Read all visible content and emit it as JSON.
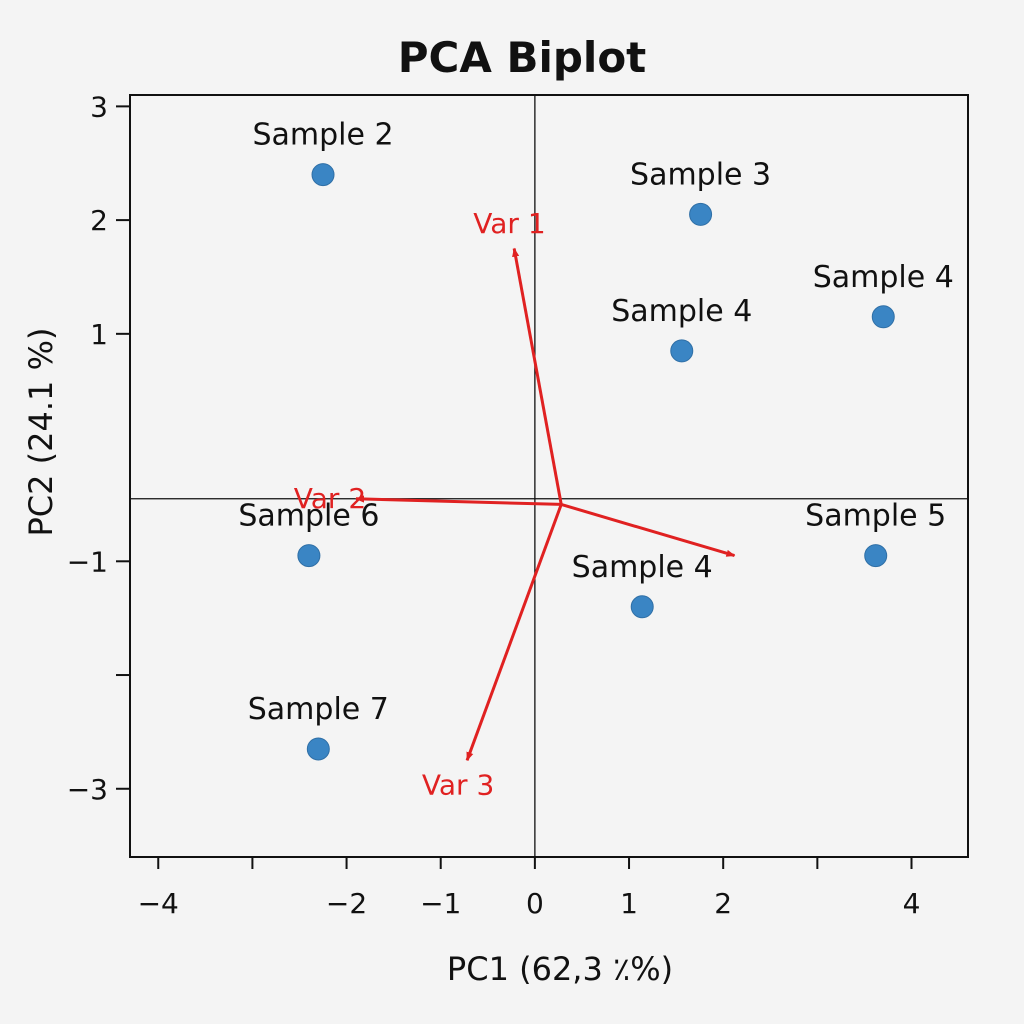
{
  "chart_data": {
    "type": "scatter",
    "title": "PCA Biplot",
    "xlabel": "PC1 (62,3 ٪%)",
    "ylabel": "PC2 (24.1 %)",
    "xlim": [
      -4.3,
      4.6
    ],
    "ylim": [
      -3.6,
      3.1
    ],
    "x_ticks": [
      {
        "value": -4,
        "label": "−4"
      },
      {
        "value": -3,
        "label": ""
      },
      {
        "value": -2,
        "label": "−2"
      },
      {
        "value": -1,
        "label": "−1"
      },
      {
        "value": 0,
        "label": "0"
      },
      {
        "value": 1,
        "label": "1"
      },
      {
        "value": 2,
        "label": "2"
      },
      {
        "value": 3,
        "label": ""
      },
      {
        "value": 4,
        "label": "4"
      }
    ],
    "y_ticks": [
      {
        "value": 3,
        "label": "3"
      },
      {
        "value": 2,
        "label": "2"
      },
      {
        "value": 1,
        "label": "1"
      },
      {
        "value": -1,
        "label": "−1"
      },
      {
        "value": -2,
        "label": ""
      },
      {
        "value": -3,
        "label": "−3"
      }
    ],
    "reference_lines": {
      "x": 0,
      "y": -0.45
    },
    "point_color": "#3a85c4",
    "arrow_color": "#e02121",
    "points": [
      {
        "label": "Sample 2",
        "x": -2.25,
        "y": 2.4
      },
      {
        "label": "Sample 3",
        "x": 1.76,
        "y": 2.05
      },
      {
        "label": "Sample 4",
        "x": 3.7,
        "y": 1.15
      },
      {
        "label": "Sample 4",
        "x": 1.56,
        "y": 0.85
      },
      {
        "label": "Sample 5",
        "x": 3.62,
        "y": -0.95
      },
      {
        "label": "Sample 4",
        "x": 1.14,
        "y": -1.4
      },
      {
        "label": "Sample 6",
        "x": -2.4,
        "y": -0.95
      },
      {
        "label": "Sample 7",
        "x": -2.3,
        "y": -2.65
      }
    ],
    "loadings_origin": {
      "x": 0.28,
      "y": -0.5
    },
    "loadings": [
      {
        "label": "Var 1",
        "x": -0.22,
        "y": 1.75
      },
      {
        "label": "Var 2",
        "x": -1.9,
        "y": -0.45
      },
      {
        "label": "Var 3",
        "x": -0.72,
        "y": -2.75
      },
      {
        "label": "",
        "x": 2.12,
        "y": -0.95
      }
    ]
  }
}
